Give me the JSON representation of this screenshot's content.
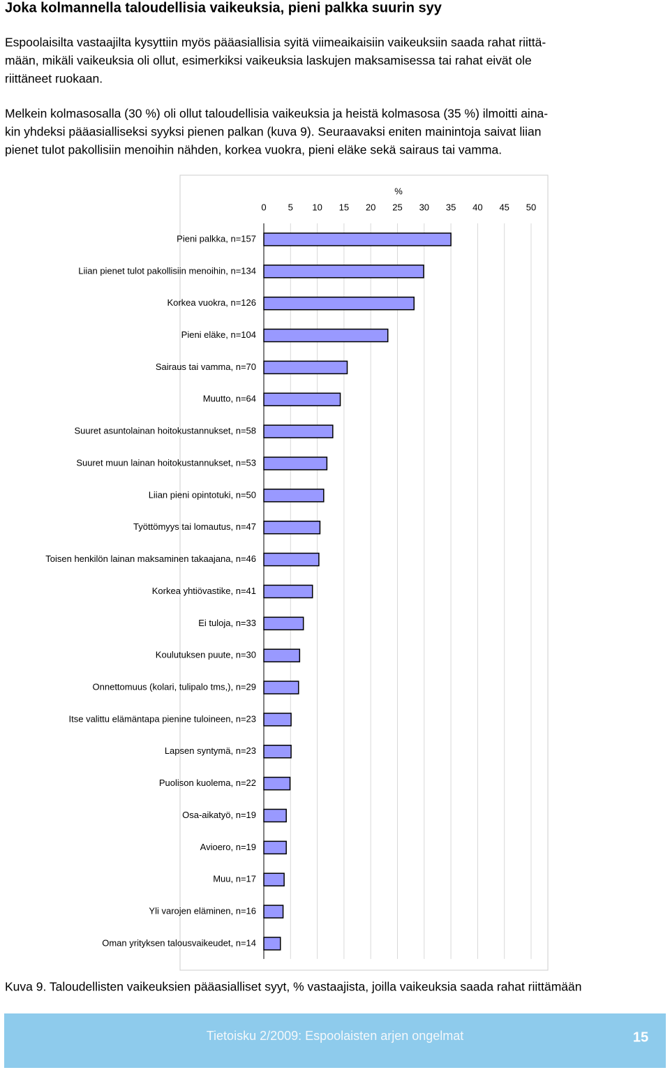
{
  "title": "Joka kolmannella taloudellisia vaikeuksia, pieni palkka suurin syy",
  "paragraphs": [
    [
      "Espoolaisilta vastaajilta kysyttiin myös pääasiallisia syitä viimeaikaisiin vaikeuksiin saada rahat riittä-",
      "mään, mikäli vaikeuksia oli ollut, esimerkiksi vaikeuksia laskujen maksamisessa tai rahat eivät ole",
      "riittäneet ruokaan."
    ],
    [
      "Melkein kolmasosalla (30 %) oli ollut taloudellisia vaikeuksia ja heistä kolmasosa (35 %) ilmoitti aina-",
      "kin yhdeksi pääasialliseksi syyksi pienen palkan (kuva 9). Seuraavaksi eniten mainintoja saivat liian",
      "pienet tulot pakollisiin menoihin nähden, korkea vuokra, pieni eläke sekä sairaus tai vamma."
    ]
  ],
  "chart_data": {
    "type": "bar",
    "orientation": "horizontal",
    "x_label": "%",
    "categories": [
      "Pieni palkka, n=157",
      "Liian pienet tulot pakollisiin menoihin, n=134",
      "Korkea vuokra, n=126",
      "Pieni eläke, n=104",
      "Sairaus tai vamma, n=70",
      "Muutto, n=64",
      "Suuret asuntolainan hoitokustannukset, n=58",
      "Suuret muun lainan hoitokustannukset, n=53",
      "Liian pieni opintotuki, n=50",
      "Työttömyys tai lomautus, n=47",
      "Toisen henkilön lainan maksaminen takaajana, n=46",
      "Korkea yhtiövastike, n=41",
      "Ei tuloja, n=33",
      "Koulutuksen puute, n=30",
      "Onnettomuus (kolari, tulipalo tms,), n=29",
      "Itse valittu elämäntapa pienine tuloineen, n=23",
      "Lapsen syntymä, n=23",
      "Puolison kuolema, n=22",
      "Osa-aikatyö, n=19",
      "Avioero, n=19",
      "Muu, n=17",
      "Yli varojen eläminen, n=16",
      "Oman yrityksen talousvaikeudet, n=14"
    ],
    "values": [
      35.0,
      29.9,
      28.1,
      23.2,
      15.6,
      14.3,
      12.9,
      11.8,
      11.2,
      10.5,
      10.3,
      9.1,
      7.4,
      6.7,
      6.5,
      5.1,
      5.1,
      4.9,
      4.2,
      4.2,
      3.8,
      3.6,
      3.1
    ],
    "color": "#9999ff",
    "xlim": [
      0,
      50
    ],
    "xticks": [
      0,
      5,
      10,
      15,
      20,
      25,
      30,
      35,
      40,
      45,
      50
    ],
    "grid": true
  },
  "caption": "Kuva 9. Taloudellisten vaikeuksien pääasialliset syyt, % vastaajista, joilla vaikeuksia saada rahat riittämään",
  "footer": {
    "text": "Tietoisku 2/2009: Espoolaisten arjen ongelmat",
    "page": "15"
  }
}
